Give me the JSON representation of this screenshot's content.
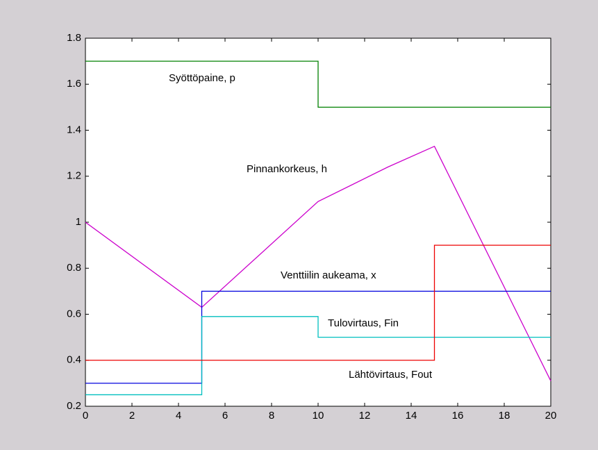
{
  "chart_data": {
    "type": "line",
    "xlim": [
      0,
      20
    ],
    "xticks": [
      0,
      2,
      4,
      6,
      8,
      10,
      12,
      14,
      16,
      18,
      20
    ],
    "ylim": [
      0.2,
      1.8
    ],
    "yticks": [
      0.2,
      0.4,
      0.6,
      0.8,
      1,
      1.2,
      1.4,
      1.6,
      1.8
    ],
    "series": [
      {
        "name": "Syöttöpaine, p",
        "color": "#008000",
        "x": [
          0,
          10,
          10,
          20
        ],
        "values": [
          1.7,
          1.7,
          1.5,
          1.5
        ]
      },
      {
        "name": "Pinnankorkeus, h",
        "color": "#cc00cc",
        "x": [
          0,
          5,
          10,
          13,
          15,
          20
        ],
        "values": [
          1.0,
          0.63,
          1.09,
          1.24,
          1.33,
          0.31
        ]
      },
      {
        "name": "Venttiilin aukeama, x",
        "color": "#0000dd",
        "x": [
          0,
          5,
          5,
          20
        ],
        "values": [
          0.3,
          0.3,
          0.7,
          0.7
        ]
      },
      {
        "name": "Tulovirtaus, Fin",
        "color": "#00bfbf",
        "x": [
          0,
          5,
          5,
          10,
          10,
          20
        ],
        "values": [
          0.25,
          0.25,
          0.59,
          0.59,
          0.5,
          0.5
        ]
      },
      {
        "name": "Lähtövirtaus, Fout",
        "color": "#ee0000",
        "x": [
          0,
          15,
          15,
          20
        ],
        "values": [
          0.4,
          0.4,
          0.9,
          0.9
        ]
      }
    ]
  }
}
